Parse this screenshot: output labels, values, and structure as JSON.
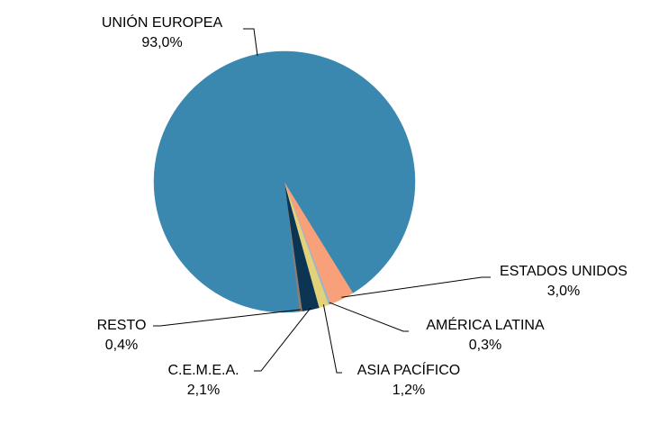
{
  "chart_data": {
    "type": "pie",
    "slices": [
      {
        "label": "UNIÓN EUROPEA",
        "value": 93.0,
        "value_label": "93,0%",
        "color": "#3A88B0"
      },
      {
        "label": "ESTADOS UNIDOS",
        "value": 3.0,
        "value_label": "3,0%",
        "color": "#F8A07A"
      },
      {
        "label": "AMÉRICA LATINA",
        "value": 0.3,
        "value_label": "0,3%",
        "color": "#9FB6C8"
      },
      {
        "label": "ASIA PACÍFICO",
        "value": 1.2,
        "value_label": "1,2%",
        "color": "#E3D27A"
      },
      {
        "label": "C.E.M.E.A.",
        "value": 2.1,
        "value_label": "2,1%",
        "color": "#0C3554"
      },
      {
        "label": "RESTO",
        "value": 0.4,
        "value_label": "0,4%",
        "color": "#8C7D74"
      }
    ]
  }
}
